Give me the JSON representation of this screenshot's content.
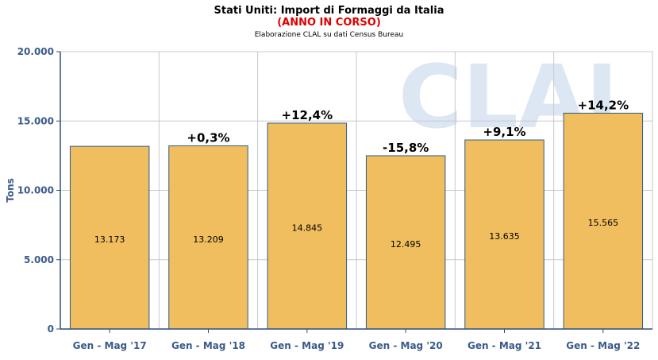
{
  "header": {
    "title": "Stati Uniti: Import di Formaggi da Italia",
    "subtitle": "(ANNO IN CORSO)",
    "source": "Elaborazione CLAL su dati Census Bureau"
  },
  "colors": {
    "bar_fill": "#f0be5e",
    "bar_stroke": "#2e5b8a",
    "grid": "#c8c8c8",
    "axis": "#2e4f7a",
    "watermark": "#dde6f3"
  },
  "watermark": "CLAL",
  "chart_data": {
    "type": "bar",
    "title": "Stati Uniti: Import di Formaggi da Italia",
    "subtitle": "(ANNO IN CORSO)",
    "ylabel": "Tons",
    "xlabel": "",
    "ylim": [
      0,
      20000
    ],
    "yticks": [
      0,
      5000,
      10000,
      15000,
      20000
    ],
    "ytick_labels": [
      "0",
      "5.000",
      "10.000",
      "15.000",
      "20.000"
    ],
    "categories": [
      "Gen - Mag '17",
      "Gen - Mag '18",
      "Gen - Mag '19",
      "Gen - Mag '20",
      "Gen - Mag '21",
      "Gen - Mag '22"
    ],
    "values": [
      13173,
      13209,
      14845,
      12495,
      13635,
      15565
    ],
    "value_labels": [
      "13.173",
      "13.209",
      "14.845",
      "12.495",
      "13.635",
      "15.565"
    ],
    "change_labels": [
      "",
      "+0,3%",
      "+12,4%",
      "-15,8%",
      "+9,1%",
      "+14,2%"
    ],
    "grid": true,
    "legend": "none"
  }
}
